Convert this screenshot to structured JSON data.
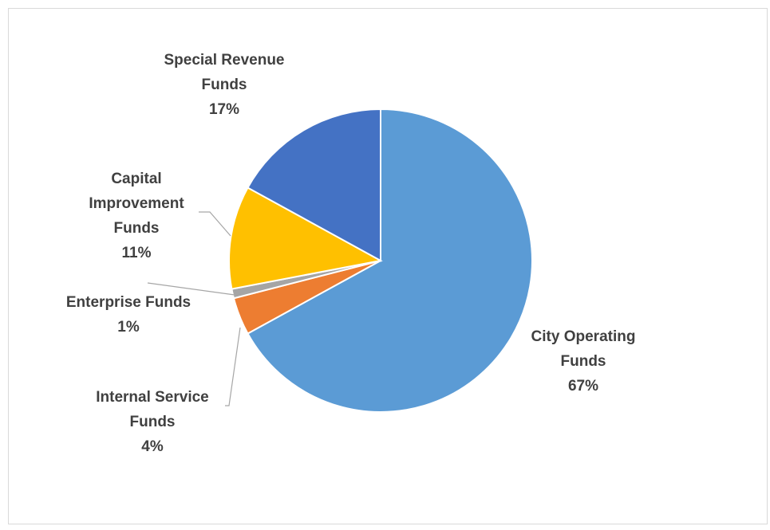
{
  "chart_data": {
    "type": "pie",
    "title": "",
    "legend": "none",
    "slices": [
      {
        "name": "City Operating Funds",
        "value": 67,
        "color": "#5b9bd5",
        "label_lines": [
          "City Operating",
          "Funds",
          "67%"
        ]
      },
      {
        "name": "Internal Service Funds",
        "value": 4,
        "color": "#ed7d31",
        "label_lines": [
          "Internal Service",
          "Funds",
          "4%"
        ]
      },
      {
        "name": "Enterprise Funds",
        "value": 1,
        "color": "#a5a5a5",
        "label_lines": [
          "Enterprise Funds",
          "1%"
        ]
      },
      {
        "name": "Capital Improvement Funds",
        "value": 11,
        "color": "#ffc000",
        "label_lines": [
          "Capital",
          "Improvement",
          "Funds",
          "11%"
        ]
      },
      {
        "name": "Special Revenue Funds",
        "value": 17,
        "color": "#4472c4",
        "label_lines": [
          "Special Revenue",
          "Funds",
          "17%"
        ]
      }
    ]
  }
}
